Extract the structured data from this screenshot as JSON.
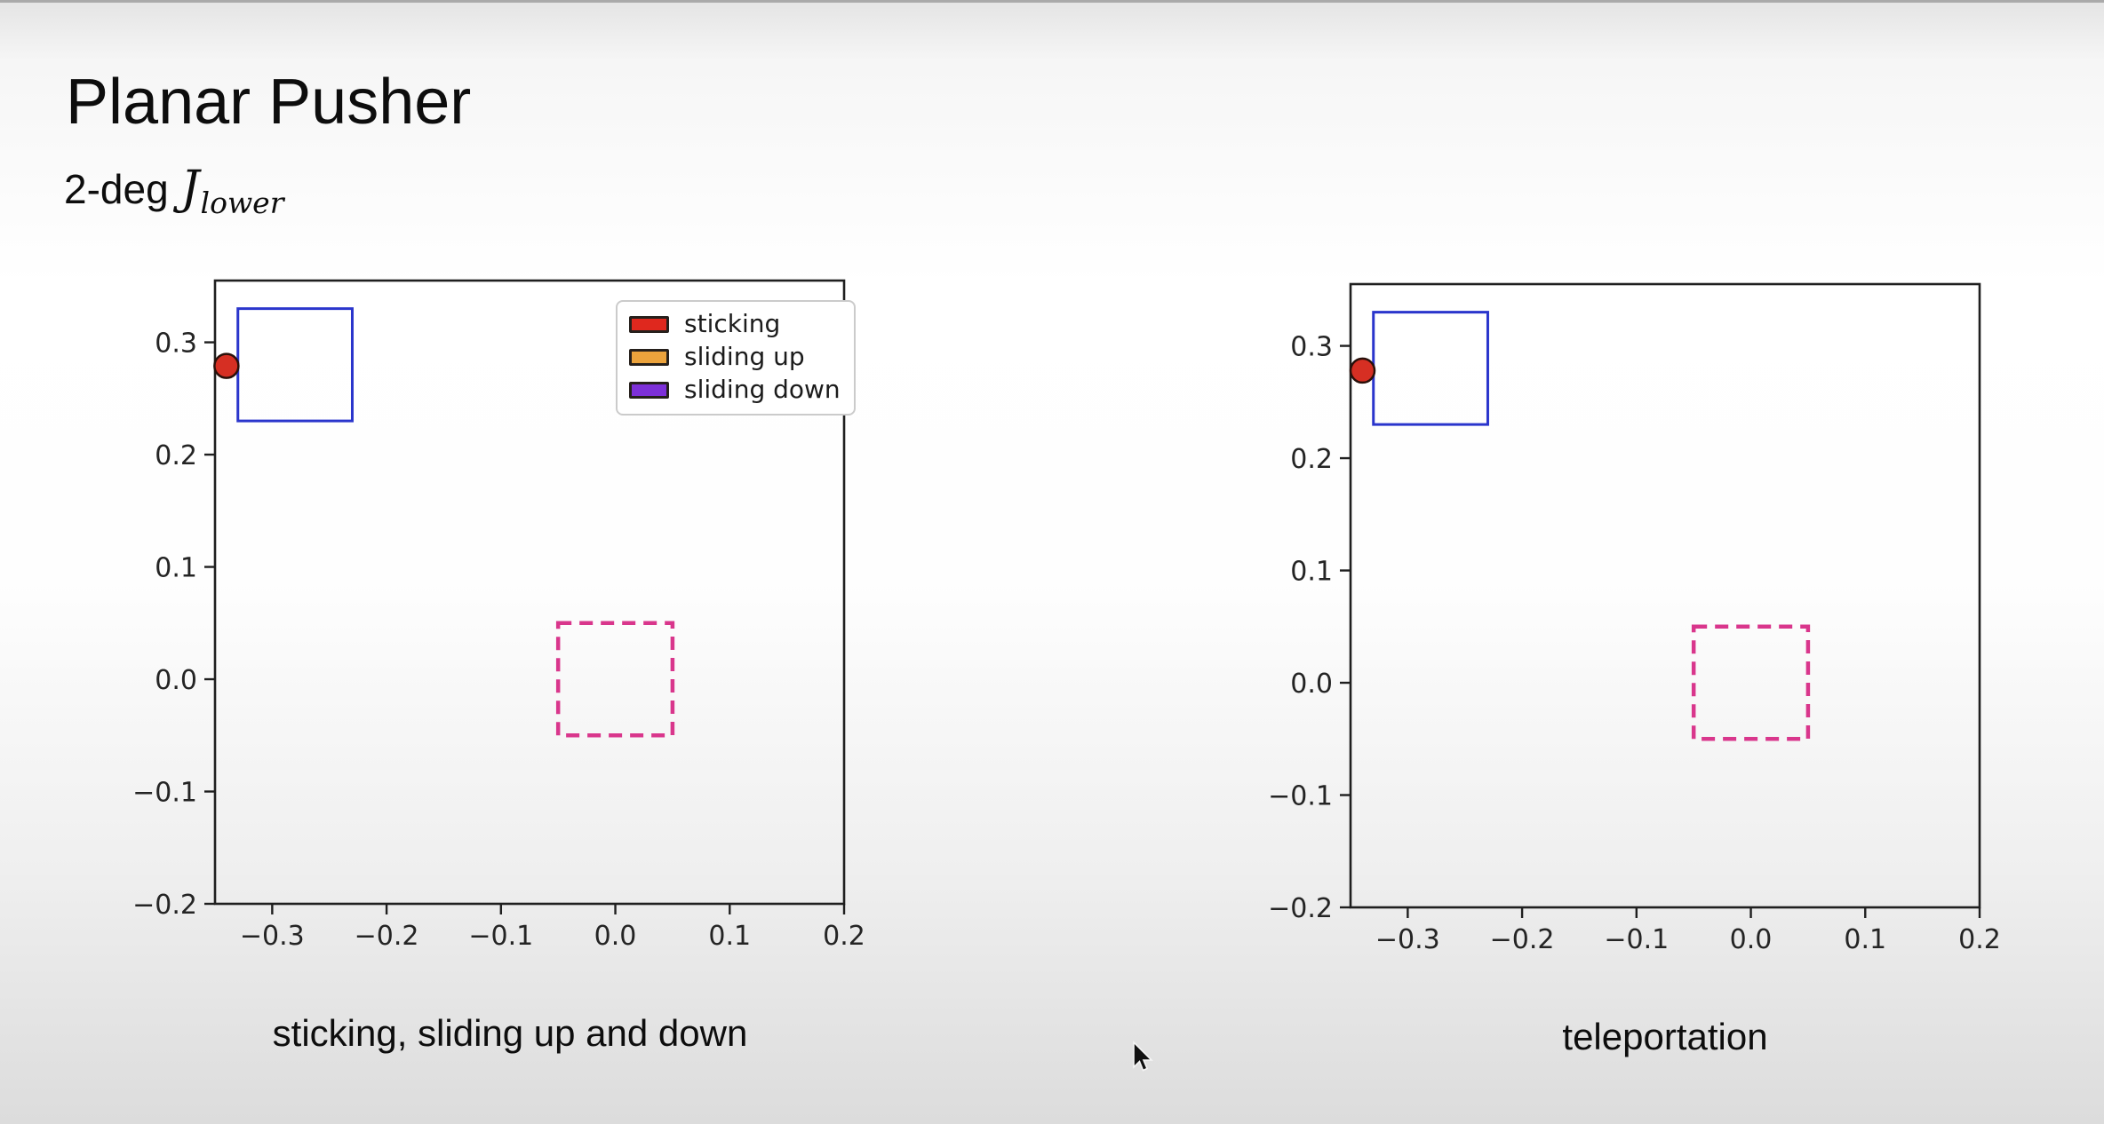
{
  "slide": {
    "title": "Planar Pusher",
    "subtitle_prefix": "2-deg",
    "subtitle_math_base": "J",
    "subtitle_math_sub": "lower"
  },
  "colors": {
    "slider_outline": "#2a35cc",
    "goal_outline": "#d9368c",
    "pusher_fill": "#d62f23",
    "pusher_edge": "#2a100a",
    "axis": "#1f1f1f",
    "legend_red": "#df281e",
    "legend_orange": "#eca33c",
    "legend_purple": "#7d30d8"
  },
  "chart_data": [
    {
      "type": "scatter",
      "title": "",
      "caption": "sticking, sliding up and down",
      "xlim": [
        -0.35,
        0.2
      ],
      "ylim": [
        -0.2,
        0.355
      ],
      "xticks": [
        -0.3,
        -0.2,
        -0.1,
        0.0,
        0.1,
        0.2
      ],
      "yticks": [
        0.3,
        0.2,
        0.1,
        0.0,
        -0.1,
        -0.2
      ],
      "grid": false,
      "legend": {
        "visible": true,
        "position": "upper right",
        "items": [
          {
            "label": "sticking",
            "color": "#df281e"
          },
          {
            "label": "sliding up",
            "color": "#eca33c"
          },
          {
            "label": "sliding down",
            "color": "#7d30d8"
          }
        ]
      },
      "shapes": [
        {
          "name": "slider-box",
          "kind": "rect",
          "x": [
            -0.33,
            -0.23
          ],
          "y": [
            0.23,
            0.33
          ],
          "stroke": "#2a35cc",
          "stroke_width": 3,
          "dash": false
        },
        {
          "name": "goal-box",
          "kind": "rect",
          "x": [
            -0.05,
            0.05
          ],
          "y": [
            -0.05,
            0.05
          ],
          "stroke": "#d9368c",
          "stroke_width": 4.5,
          "dash": true
        },
        {
          "name": "pusher-dot",
          "kind": "circle",
          "cx": -0.34,
          "cy": 0.279,
          "r": 0.0105,
          "fill": "#d62f23",
          "stroke": "#2a100a",
          "stroke_width": 2.5
        }
      ]
    },
    {
      "type": "scatter",
      "title": "",
      "caption": "teleportation",
      "xlim": [
        -0.35,
        0.2
      ],
      "ylim": [
        -0.2,
        0.355
      ],
      "xticks": [
        -0.3,
        -0.2,
        -0.1,
        0.0,
        0.1,
        0.2
      ],
      "yticks": [
        0.3,
        0.2,
        0.1,
        0.0,
        -0.1,
        -0.2
      ],
      "grid": false,
      "legend": {
        "visible": false,
        "items": []
      },
      "shapes": [
        {
          "name": "slider-box",
          "kind": "rect",
          "x": [
            -0.33,
            -0.23
          ],
          "y": [
            0.23,
            0.33
          ],
          "stroke": "#2a35cc",
          "stroke_width": 3,
          "dash": false
        },
        {
          "name": "goal-box",
          "kind": "rect",
          "x": [
            -0.05,
            0.05
          ],
          "y": [
            -0.05,
            0.05
          ],
          "stroke": "#d9368c",
          "stroke_width": 4.5,
          "dash": true
        },
        {
          "name": "pusher-dot",
          "kind": "circle",
          "cx": -0.3395,
          "cy": 0.278,
          "r": 0.0105,
          "fill": "#d62f23",
          "stroke": "#2a100a",
          "stroke_width": 2.5
        }
      ]
    }
  ]
}
